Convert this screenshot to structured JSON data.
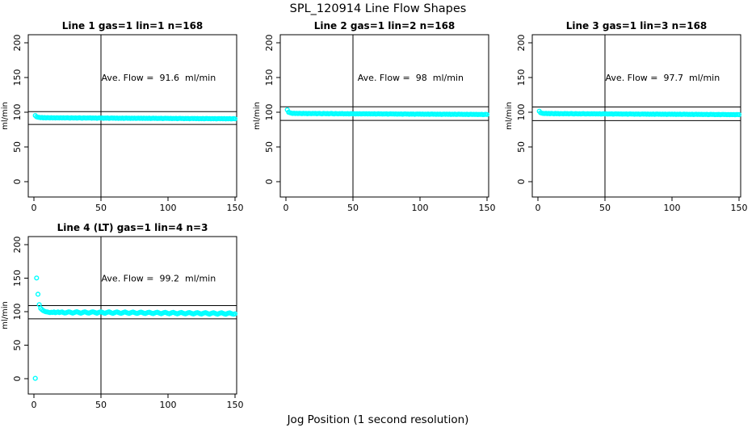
{
  "main": {
    "title": "SPL_120914  Line Flow Shapes",
    "xlabel": "Jog Position (1 second resolution)"
  },
  "style": {
    "point_color": "#00ffff",
    "axis_color": "#000000",
    "background": "#ffffff"
  },
  "chart_data": [
    {
      "type": "scatter",
      "title": "Line 1 gas=1 lin=1 n=168",
      "grid_pos": {
        "row": 0,
        "col": 0
      },
      "annotation": "Ave. Flow =  91.6  ml/min",
      "annotation_at": {
        "x": 93,
        "y": 150
      },
      "ave_flow_ml_min": 91.6,
      "ylabel": "ml/min",
      "xlim": [
        0,
        150
      ],
      "ylim": [
        0,
        200
      ],
      "xticks": [
        0,
        50,
        100,
        150
      ],
      "yticks": [
        0,
        50,
        100,
        150,
        200
      ],
      "hlines": [
        100.8,
        82.4
      ],
      "vline": 50,
      "x_start": 1,
      "x_step": 1,
      "y": [
        95.2,
        93.4,
        92.8,
        92.5,
        92.1,
        92.4,
        91.9,
        92.3,
        91.8,
        92.2,
        92.0,
        91.7,
        92.2,
        91.8,
        92.1,
        91.6,
        92.0,
        91.9,
        91.7,
        92.1,
        91.8,
        92.0,
        91.6,
        91.9,
        92.1,
        91.7,
        91.5,
        92.0,
        91.8,
        91.6,
        91.9,
        91.5,
        91.8,
        92.0,
        91.6,
        91.4,
        91.9,
        91.7,
        91.5,
        91.8,
        91.6,
        91.9,
        91.4,
        91.7,
        91.5,
        91.8,
        91.3,
        91.6,
        91.8,
        91.5,
        91.7,
        91.3,
        91.6,
        91.4,
        91.7,
        91.2,
        91.5,
        91.7,
        91.4,
        91.6,
        91.3,
        91.6,
        91.2,
        91.5,
        91.3,
        91.6,
        91.1,
        91.4,
        91.6,
        91.3,
        91.5,
        91.1,
        91.4,
        91.2,
        91.5,
        91.0,
        91.3,
        91.5,
        91.2,
        91.4,
        91.1,
        91.4,
        91.0,
        91.3,
        91.1,
        91.4,
        90.9,
        91.2,
        91.4,
        91.1,
        91.3,
        90.9,
        91.2,
        91.0,
        91.3,
        90.8,
        91.1,
        91.3,
        91.0,
        91.2,
        90.9,
        91.2,
        90.8,
        91.1,
        90.9,
        91.2,
        90.7,
        91.0,
        91.2,
        90.9,
        91.1,
        90.7,
        91.0,
        90.8,
        91.1,
        90.6,
        90.9,
        91.1,
        90.8,
        91.0,
        90.7,
        91.0,
        90.6,
        90.9,
        90.7,
        91.0,
        90.5,
        90.8,
        91.0,
        90.7,
        90.9,
        90.5,
        90.8,
        90.6,
        90.9,
        90.4,
        90.7,
        90.9,
        90.6,
        90.8,
        90.5,
        90.8,
        90.4,
        90.7,
        90.5,
        90.8,
        90.3,
        90.6,
        90.8,
        90.5
      ]
    },
    {
      "type": "scatter",
      "title": "Line 2 gas=1 lin=2 n=168",
      "grid_pos": {
        "row": 0,
        "col": 1
      },
      "annotation": "Ave. Flow =  98  ml/min",
      "annotation_at": {
        "x": 93,
        "y": 150
      },
      "ave_flow_ml_min": 98,
      "ylabel": "ml/min",
      "xlim": [
        0,
        150
      ],
      "ylim": [
        0,
        200
      ],
      "xticks": [
        0,
        50,
        100,
        150
      ],
      "yticks": [
        0,
        50,
        100,
        150,
        200
      ],
      "hlines": [
        107.8,
        88.2
      ],
      "vline": 50,
      "x_start": 1,
      "x_step": 1,
      "y": [
        103.5,
        100.0,
        99.3,
        98.7,
        98.3,
        98.6,
        98.1,
        98.5,
        98.0,
        98.4,
        98.2,
        97.9,
        98.4,
        98.0,
        98.3,
        97.8,
        98.2,
        98.1,
        97.9,
        98.3,
        98.0,
        98.2,
        97.8,
        98.1,
        98.3,
        97.9,
        97.7,
        98.2,
        98.0,
        97.8,
        98.1,
        97.7,
        98.0,
        98.2,
        97.8,
        97.6,
        98.1,
        97.9,
        97.7,
        98.0,
        97.8,
        98.1,
        97.6,
        97.9,
        97.7,
        98.0,
        97.5,
        97.8,
        98.0,
        97.7,
        97.9,
        97.5,
        97.8,
        97.6,
        97.9,
        97.4,
        97.7,
        97.9,
        97.6,
        97.8,
        97.5,
        97.8,
        97.4,
        97.7,
        97.5,
        97.8,
        97.3,
        97.6,
        97.8,
        97.5,
        97.7,
        97.3,
        97.6,
        97.4,
        97.7,
        97.2,
        97.5,
        97.7,
        97.4,
        97.6,
        97.3,
        97.6,
        97.2,
        97.5,
        97.3,
        97.6,
        97.1,
        97.4,
        97.6,
        97.3,
        97.5,
        97.1,
        97.4,
        97.2,
        97.5,
        97.0,
        97.3,
        97.5,
        97.2,
        97.4,
        97.1,
        97.4,
        97.0,
        97.3,
        97.1,
        97.4,
        96.9,
        97.2,
        97.4,
        97.1,
        97.3,
        96.9,
        97.2,
        97.0,
        97.3,
        96.8,
        97.1,
        97.3,
        97.0,
        97.2,
        96.9,
        97.2,
        96.8,
        97.1,
        96.9,
        97.2,
        96.7,
        97.0,
        97.2,
        96.9,
        97.1,
        96.7,
        97.0,
        96.8,
        97.1,
        96.6,
        96.9,
        97.1,
        96.8,
        97.0,
        96.7,
        97.0,
        96.6,
        96.9,
        96.7,
        97.0,
        96.5,
        96.8,
        97.0,
        96.7
      ]
    },
    {
      "type": "scatter",
      "title": "Line 3 gas=1 lin=3 n=168",
      "grid_pos": {
        "row": 0,
        "col": 2
      },
      "annotation": "Ave. Flow =  97.7  ml/min",
      "annotation_at": {
        "x": 93,
        "y": 150
      },
      "ave_flow_ml_min": 97.7,
      "ylabel": "ml/min",
      "xlim": [
        0,
        150
      ],
      "ylim": [
        0,
        200
      ],
      "xticks": [
        0,
        50,
        100,
        150
      ],
      "yticks": [
        0,
        50,
        100,
        150,
        200
      ],
      "hlines": [
        107.5,
        87.9
      ],
      "vline": 50,
      "x_start": 1,
      "x_step": 1,
      "y": [
        101.5,
        99.2,
        98.6,
        98.3,
        98.0,
        98.4,
        97.9,
        98.3,
        97.8,
        98.2,
        98.0,
        97.7,
        98.2,
        97.8,
        98.1,
        97.6,
        98.0,
        97.9,
        97.7,
        98.1,
        97.8,
        98.0,
        97.6,
        97.9,
        98.1,
        97.7,
        97.5,
        98.0,
        97.8,
        97.6,
        97.9,
        97.5,
        97.8,
        98.0,
        97.6,
        97.4,
        97.9,
        97.7,
        97.5,
        97.8,
        97.6,
        97.9,
        97.4,
        97.7,
        97.5,
        97.8,
        97.3,
        97.6,
        97.8,
        97.5,
        97.7,
        97.3,
        97.6,
        97.4,
        97.7,
        97.2,
        97.5,
        97.7,
        97.4,
        97.6,
        97.3,
        97.6,
        97.2,
        97.5,
        97.3,
        97.6,
        97.1,
        97.4,
        97.6,
        97.3,
        97.5,
        97.1,
        97.4,
        97.2,
        97.5,
        97.0,
        97.3,
        97.5,
        97.2,
        97.4,
        97.1,
        97.4,
        97.0,
        97.3,
        97.1,
        97.4,
        96.9,
        97.2,
        97.4,
        97.1,
        97.3,
        96.9,
        97.2,
        97.0,
        97.3,
        96.8,
        97.1,
        97.3,
        97.0,
        97.2,
        96.9,
        97.2,
        96.8,
        97.1,
        96.9,
        97.2,
        96.7,
        97.0,
        97.2,
        96.9,
        97.1,
        96.7,
        97.0,
        96.8,
        97.1,
        96.6,
        96.9,
        97.1,
        96.8,
        97.0,
        96.7,
        97.0,
        96.6,
        96.9,
        96.7,
        97.0,
        96.5,
        96.8,
        97.0,
        96.7,
        96.9,
        96.5,
        96.8,
        96.6,
        96.9,
        96.4,
        96.7,
        96.9,
        96.6,
        96.8,
        96.5,
        96.8,
        96.4,
        96.7,
        96.5,
        96.8,
        96.3,
        96.6,
        96.8,
        96.5
      ]
    },
    {
      "type": "scatter",
      "title": "Line 4 (LT) gas=1 lin=4 n=3",
      "grid_pos": {
        "row": 1,
        "col": 0
      },
      "annotation": "Ave. Flow =  99.2  ml/min",
      "annotation_at": {
        "x": 93,
        "y": 150
      },
      "ave_flow_ml_min": 99.2,
      "ylabel": "ml/min",
      "xlim": [
        0,
        150
      ],
      "ylim": [
        0,
        200
      ],
      "xticks": [
        0,
        50,
        100,
        150
      ],
      "yticks": [
        0,
        50,
        100,
        150,
        200
      ],
      "hlines": [
        109.1,
        89.3
      ],
      "vline": 50,
      "x_start": 1,
      "x_step": 1,
      "y": [
        0.5,
        150.2,
        126.0,
        110.5,
        105.0,
        103.0,
        101.5,
        100.5,
        99.8,
        99.5,
        99.0,
        98.5,
        99.2,
        98.8,
        99.5,
        98.4,
        99.0,
        99.6,
        98.6,
        99.2,
        99.5,
        98.6,
        97.9,
        98.3,
        99.2,
        99.8,
        99.3,
        98.4,
        97.8,
        98.5,
        99.4,
        99.9,
        99.2,
        98.3,
        97.7,
        98.4,
        99.3,
        99.7,
        99.0,
        98.2,
        97.8,
        98.6,
        99.4,
        99.8,
        99.1,
        98.3,
        97.7,
        98.5,
        99.3,
        99.6,
        99.0,
        98.1,
        97.6,
        98.4,
        99.2,
        99.7,
        98.9,
        98.0,
        97.5,
        98.3,
        99.1,
        99.6,
        98.8,
        98.0,
        97.5,
        98.2,
        99.0,
        99.5,
        98.7,
        97.9,
        97.4,
        98.2,
        99.0,
        99.4,
        98.6,
        97.8,
        97.3,
        98.1,
        98.9,
        99.3,
        98.5,
        97.7,
        97.2,
        98.0,
        98.8,
        99.2,
        98.4,
        97.6,
        97.1,
        97.9,
        98.7,
        99.1,
        98.3,
        97.5,
        97.0,
        97.8,
        98.6,
        99.0,
        98.2,
        97.4,
        96.9,
        97.7,
        98.5,
        98.9,
        98.1,
        97.3,
        96.8,
        97.6,
        98.4,
        98.8,
        98.0,
        97.2,
        96.7,
        97.5,
        98.3,
        98.7,
        97.9,
        97.1,
        96.6,
        97.4,
        98.2,
        98.6,
        97.8,
        97.0,
        96.5,
        97.3,
        98.1,
        98.5,
        97.7,
        96.9,
        96.4,
        97.2,
        98.0,
        98.4,
        97.6,
        96.8,
        96.3,
        97.1,
        97.9,
        98.3,
        97.5,
        96.7,
        96.2,
        97.0,
        97.8,
        98.2,
        97.4,
        96.6,
        96.1,
        96.9
      ]
    }
  ]
}
